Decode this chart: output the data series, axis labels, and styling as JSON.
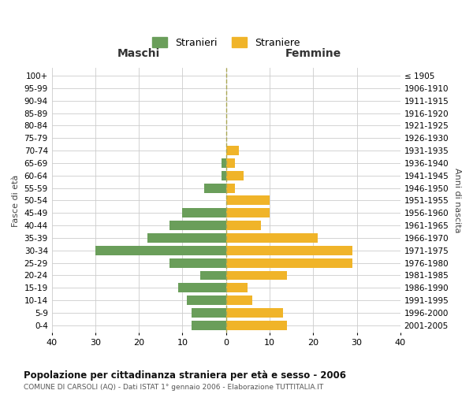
{
  "age_groups": [
    "100+",
    "95-99",
    "90-94",
    "85-89",
    "80-84",
    "75-79",
    "70-74",
    "65-69",
    "60-64",
    "55-59",
    "50-54",
    "45-49",
    "40-44",
    "35-39",
    "30-34",
    "25-29",
    "20-24",
    "15-19",
    "10-14",
    "5-9",
    "0-4"
  ],
  "birth_years": [
    "≤ 1905",
    "1906-1910",
    "1911-1915",
    "1916-1920",
    "1921-1925",
    "1926-1930",
    "1931-1935",
    "1936-1940",
    "1941-1945",
    "1946-1950",
    "1951-1955",
    "1956-1960",
    "1961-1965",
    "1966-1970",
    "1971-1975",
    "1976-1980",
    "1981-1985",
    "1986-1990",
    "1991-1995",
    "1996-2000",
    "2001-2005"
  ],
  "males": [
    0,
    0,
    0,
    0,
    0,
    0,
    0,
    1,
    1,
    5,
    0,
    10,
    13,
    18,
    30,
    13,
    6,
    11,
    9,
    8,
    8
  ],
  "females": [
    0,
    0,
    0,
    0,
    0,
    0,
    3,
    2,
    4,
    2,
    10,
    10,
    8,
    21,
    29,
    29,
    14,
    5,
    6,
    13,
    14
  ],
  "male_color": "#6a9e5a",
  "female_color": "#f0b429",
  "xlim": 40,
  "xlabel_left": "Maschi",
  "xlabel_right": "Femmine",
  "ylabel_left": "Fasce di età",
  "ylabel_right": "Anni di nascita",
  "title": "Popolazione per cittadinanza straniera per età e sesso - 2006",
  "subtitle": "COMUNE DI CARSOLI (AQ) - Dati ISTAT 1° gennaio 2006 - Elaborazione TUTTITALIA.IT",
  "legend_male": "Stranieri",
  "legend_female": "Straniere",
  "background_color": "#ffffff",
  "grid_color": "#cccccc"
}
